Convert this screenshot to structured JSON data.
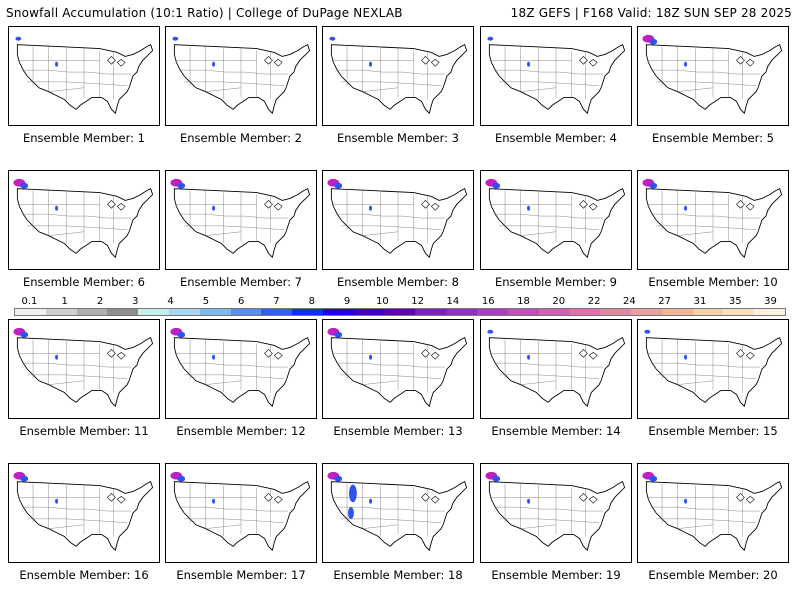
{
  "header": {
    "left": "Snowfall Accumulation (10:1 Ratio) | College of DuPage NEXLAB",
    "right": "18Z GEFS | F168 Valid: 18Z SUN SEP 28 2025"
  },
  "member_label_prefix": "Ensemble Member: ",
  "members": [
    1,
    2,
    3,
    4,
    5,
    6,
    7,
    8,
    9,
    10,
    11,
    12,
    13,
    14,
    15,
    16,
    17,
    18,
    19,
    20
  ],
  "colorbar": {
    "ticks": [
      "0.1",
      "1",
      "2",
      "3",
      "4",
      "5",
      "6",
      "7",
      "8",
      "9",
      "10",
      "12",
      "14",
      "16",
      "18",
      "20",
      "22",
      "24",
      "27",
      "31",
      "35",
      "39"
    ],
    "colors": [
      "#f0f0f0",
      "#d0d0d0",
      "#b0b0b0",
      "#909090",
      "#c8f0f0",
      "#a8d8f0",
      "#80b8f0",
      "#5890f0",
      "#3060f0",
      "#1030f0",
      "#2000e0",
      "#4000c0",
      "#6000b0",
      "#7a20c0",
      "#9030c0",
      "#a840c0",
      "#c050b8",
      "#d060b0",
      "#e070a8",
      "#e088a0",
      "#e8a0a0",
      "#f0b898",
      "#f5d0a8",
      "#fae0c0",
      "#fdf0dc"
    ]
  },
  "snow_color_light": "#3050f0",
  "snow_color_heavy": "#c020c0"
}
